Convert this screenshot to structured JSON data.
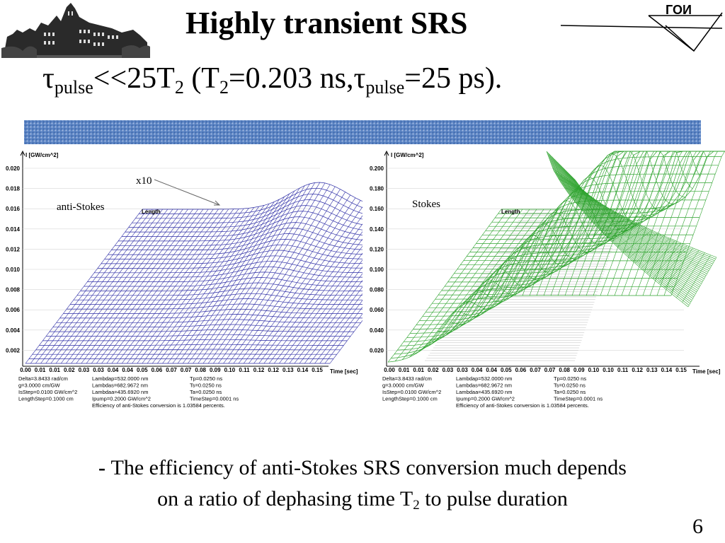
{
  "header": {
    "title": "Highly transient SRS",
    "subtitle": {
      "tau": "τ",
      "sub_pulse": "pulse",
      "ll": "<<25T",
      "sub_2a": "2",
      "paren_open": " (T",
      "sub_2b": "2",
      "eq": "=0.203 ns,",
      "tau2": "τ",
      "sub_pulse2": "pulse",
      "end": "=25 ps)."
    },
    "logo_text": "ГОИ"
  },
  "chart_data": [
    {
      "type": "surface",
      "ylabel": "I [GW/cm^2]",
      "xlabel": "Time [sec]",
      "depth_label": "Length",
      "series_label": "anti-Stokes",
      "annotation": "x10",
      "y_ticks": [
        "0.020",
        "0.018",
        "0.016",
        "0.014",
        "0.012",
        "0.010",
        "0.008",
        "0.006",
        "0.004",
        "0.002"
      ],
      "x_ticks": [
        "0.00",
        "0.01",
        "0.01",
        "0.02",
        "0.03",
        "0.03",
        "0.04",
        "0.04",
        "0.05",
        "0.06",
        "0.07",
        "0.07",
        "0.08",
        "0.09",
        "0.10",
        "0.11",
        "0.12",
        "0.12",
        "0.13",
        "0.14",
        "0.15"
      ],
      "ylim": [
        0,
        0.02
      ],
      "peak": {
        "time": 0.12,
        "value": 0.0178
      },
      "color": "#2e2ea6",
      "params": [
        [
          "Delta=3.8433 rad/cm",
          "Lambdap=532.0000 nm",
          "Tp=0.0250 ns"
        ],
        [
          "g=3.0000 cm/GW",
          "Lambdas=682.9672 nm",
          "Ts=0.0250 ns"
        ],
        [
          "IsStep=0.0100 GW/cm^2",
          "Lambdaa=435.6920 nm",
          "Ta=0.0250 ns"
        ],
        [
          "LengthStep=0.1000 cm",
          "Ipump=0.2000 GW/cm^2",
          "TimeStep=0.0001 ns"
        ]
      ],
      "efficiency": "Efficiency of anti-Stokes conversion is 1.03584 percents."
    },
    {
      "type": "surface",
      "ylabel": "I [GW/cm^2]",
      "xlabel": "Time [sec]",
      "depth_label": "Length",
      "series_label": "Stokes",
      "y_ticks": [
        "0.200",
        "0.180",
        "0.160",
        "0.140",
        "0.120",
        "0.100",
        "0.080",
        "0.060",
        "0.040",
        "0.020"
      ],
      "x_ticks": [
        "0.00",
        "0.01",
        "0.01",
        "0.02",
        "0.03",
        "0.03",
        "0.04",
        "0.04",
        "0.05",
        "0.06",
        "0.07",
        "0.07",
        "0.08",
        "0.09",
        "0.10",
        "0.10",
        "0.11",
        "0.12",
        "0.13",
        "0.14",
        "0.15"
      ],
      "ylim": [
        0,
        0.2
      ],
      "color": "#2ea32e",
      "params": [
        [
          "Delta=3.8433 rad/cm",
          "Lambdap=532.0000 nm",
          "Tp=0.0250 ns"
        ],
        [
          "g=3.0000 cm/GW",
          "Lambdas=682.9672 nm",
          "Ts=0.0250 ns"
        ],
        [
          "IsStep=0.0100 GW/cm^2",
          "Lambdaa=435.6920 nm",
          "Ta=0.0250 ns"
        ],
        [
          "LengthStep=0.1000 cm",
          "Ipump=0.2000 GW/cm^2",
          "TimeStep=0.0001 ns"
        ]
      ],
      "efficiency": "Efficiency of anti-Stokes conversion is 1.03584 percents."
    }
  ],
  "bullet": {
    "dash": "- ",
    "line1": "The efficiency of anti-Stokes SRS conversion much depends",
    "line2a": "on a ratio of dephasing time T",
    "sub": "2",
    "line2b": " to pulse duration"
  },
  "page_number": "6"
}
